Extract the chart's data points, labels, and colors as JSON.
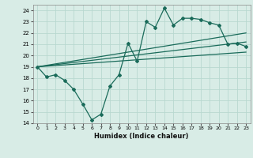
{
  "title": "",
  "xlabel": "Humidex (Indice chaleur)",
  "ylabel": "",
  "bg_color": "#d8ece6",
  "grid_color": "#b8d8d0",
  "line_color": "#1a6b5a",
  "xlim": [
    -0.5,
    23.5
  ],
  "ylim": [
    14,
    24.5
  ],
  "yticks": [
    14,
    15,
    16,
    17,
    18,
    19,
    20,
    21,
    22,
    23,
    24
  ],
  "xticks": [
    0,
    1,
    2,
    3,
    4,
    5,
    6,
    7,
    8,
    9,
    10,
    11,
    12,
    13,
    14,
    15,
    16,
    17,
    18,
    19,
    20,
    21,
    22,
    23
  ],
  "main_x": [
    0,
    1,
    2,
    3,
    4,
    5,
    6,
    7,
    8,
    9,
    10,
    11,
    12,
    13,
    14,
    15,
    16,
    17,
    18,
    19,
    20,
    21,
    22,
    23
  ],
  "main_y": [
    19,
    18.1,
    18.3,
    17.8,
    17.0,
    15.7,
    14.3,
    14.8,
    17.3,
    18.3,
    21.1,
    19.5,
    23.0,
    22.5,
    24.2,
    22.7,
    23.3,
    23.3,
    23.2,
    22.9,
    22.7,
    21.0,
    21.1,
    20.8
  ],
  "trend1_x": [
    0,
    23
  ],
  "trend1_y": [
    19.0,
    22.0
  ],
  "trend2_x": [
    0,
    23
  ],
  "trend2_y": [
    19.0,
    21.2
  ],
  "trend3_x": [
    0,
    23
  ],
  "trend3_y": [
    19.0,
    20.3
  ]
}
